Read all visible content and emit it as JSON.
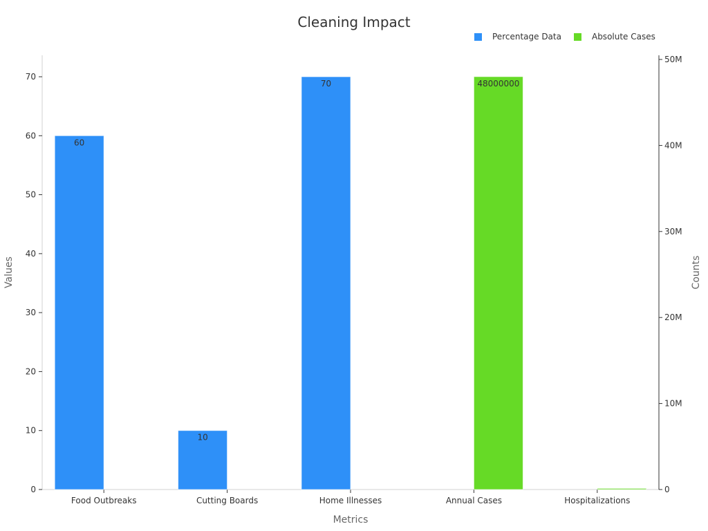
{
  "chart_data": {
    "type": "bar",
    "title": "Cleaning Impact",
    "xlabel": "Metrics",
    "ylabel": "Values",
    "y2label": "Counts",
    "categories": [
      "Food Outbreaks",
      "Cutting Boards",
      "Home Illnesses",
      "Annual Cases",
      "Hospitalizations"
    ],
    "ylim": [
      0,
      74
    ],
    "y2lim": [
      0,
      50500000
    ],
    "yticks": [
      0,
      10,
      20,
      30,
      40,
      50,
      60,
      70
    ],
    "y2ticks": [
      0,
      10000000,
      20000000,
      30000000,
      40000000,
      50000000
    ],
    "y2tick_labels": [
      "0",
      "10M",
      "20M",
      "30M",
      "40M",
      "50M"
    ],
    "legend_position": "top-right",
    "grid": false,
    "series": [
      {
        "name": "Percentage Data",
        "axis": "left",
        "color": "#2e90f8",
        "values": [
          60,
          10,
          70,
          null,
          null
        ],
        "data_labels": [
          "60",
          "10",
          "70",
          "",
          ""
        ]
      },
      {
        "name": "Absolute Cases",
        "axis": "right",
        "color": "#66da26",
        "values": [
          null,
          null,
          null,
          48000000,
          128000
        ],
        "data_labels": [
          "",
          "",
          "",
          "48000000",
          ""
        ]
      }
    ]
  }
}
